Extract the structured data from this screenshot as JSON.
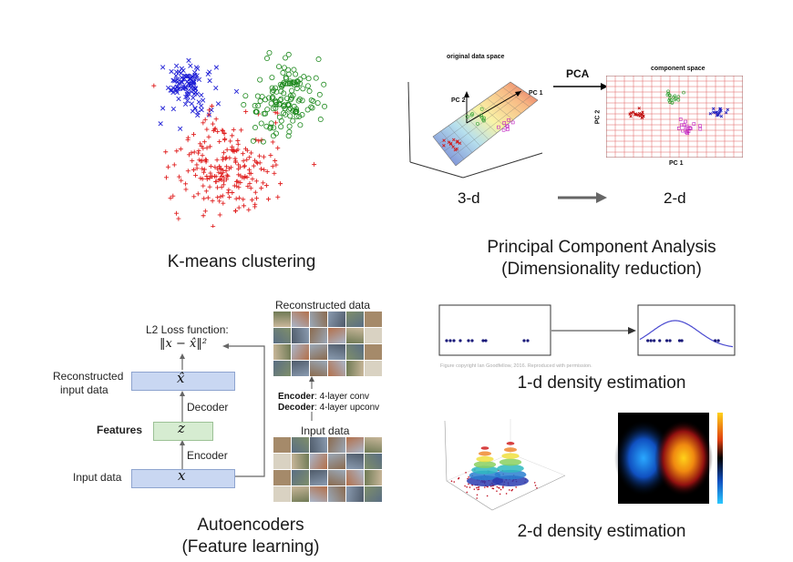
{
  "kmeans": {
    "caption": "K-means clustering"
  },
  "pca": {
    "caption_line1": "Principal Component Analysis",
    "caption_line2": "(Dimensionality reduction)",
    "original_title": "original data space",
    "component_title": "component space",
    "arrow_label": "PCA",
    "pc1": "PC 1",
    "pc2": "PC 2",
    "axis_pc1": "PC 1",
    "axis_pc2": "PC 2",
    "dim_from": "3-d",
    "dim_to": "2-d"
  },
  "autoencoder": {
    "caption_line1": "Autoencoders",
    "caption_line2": "(Feature learning)",
    "loss_label": "L2 Loss function:",
    "loss_formula": "‖x − x̂‖²",
    "reconstructed_label_line1": "Reconstructed",
    "reconstructed_label_line2": "input data",
    "features_label": "Features",
    "input_label": "Input data",
    "decoder_label": "Decoder",
    "encoder_label": "Encoder",
    "xhat_symbol": "x̂",
    "z_symbol": "z",
    "x_symbol": "x",
    "reconstructed_data_title": "Reconstructed data",
    "encoder_desc_bold": "Encoder",
    "encoder_desc": ": 4-layer conv",
    "decoder_desc_bold": "Decoder",
    "decoder_desc": ": 4-layer upconv",
    "input_data_title": "Input data"
  },
  "density1d": {
    "caption": "1-d density estimation",
    "copyright": "Figure copyright Ian Goodfellow, 2016. Reproduced with permission."
  },
  "density2d": {
    "caption": "2-d density estimation"
  },
  "colors": {
    "cluster_blue": "#1f1fd6",
    "cluster_red": "#e02020",
    "cluster_green": "#1f8a1f",
    "encoder_box": "#c9d7f2",
    "feature_box": "#d6ecd1"
  }
}
